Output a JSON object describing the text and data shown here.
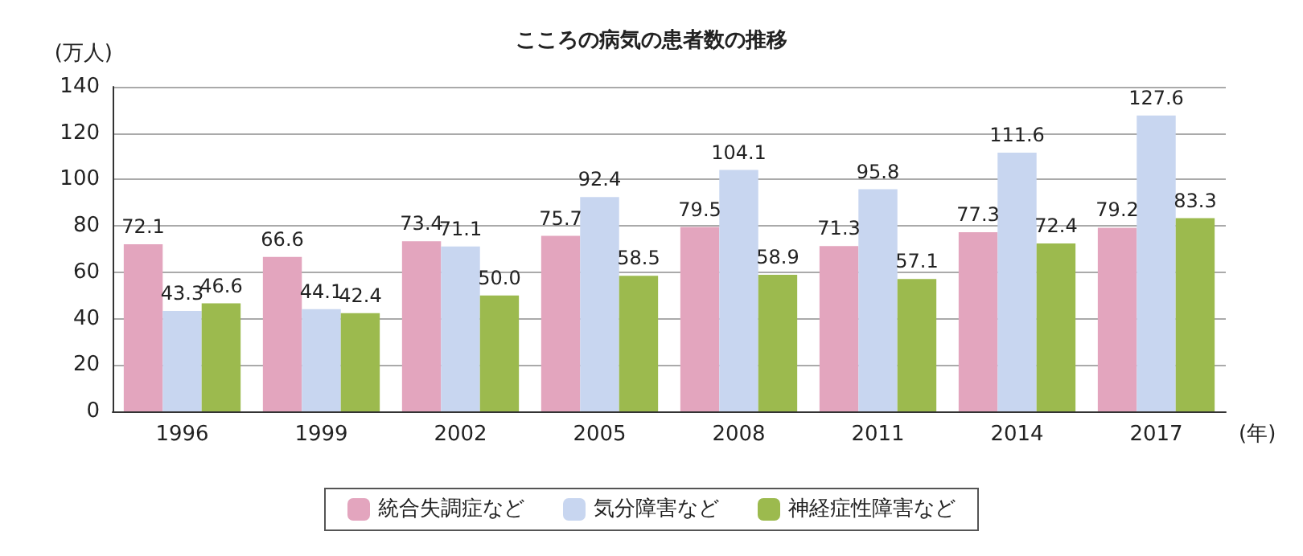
{
  "chart_data": {
    "type": "bar",
    "title": "こころの病気の患者数の推移",
    "ylabel": "(万人)",
    "xlabel": "(年)",
    "categories": [
      "1996",
      "1999",
      "2002",
      "2005",
      "2008",
      "2011",
      "2014",
      "2017"
    ],
    "series": [
      {
        "name": "統合失調症など",
        "color": "#e3a5be",
        "values": [
          72.1,
          66.6,
          73.4,
          75.7,
          79.5,
          71.3,
          77.3,
          79.2
        ],
        "value_labels": [
          "72.1",
          "66.6",
          "73.4",
          "75.7",
          "79.5",
          "71.3",
          "77.3",
          "79.2"
        ]
      },
      {
        "name": "気分障害など",
        "color": "#c8d6f0",
        "values": [
          43.3,
          44.1,
          71.1,
          92.4,
          104.1,
          95.8,
          111.6,
          127.6
        ],
        "value_labels": [
          "43.3",
          "44.1",
          "71.1",
          "92.4",
          "104.1",
          "95.8",
          "111.6",
          "127.6"
        ]
      },
      {
        "name": "神経症性障害など",
        "color": "#9cba4e",
        "values": [
          46.6,
          42.4,
          50.0,
          58.5,
          58.9,
          57.1,
          72.4,
          83.3
        ],
        "value_labels": [
          "46.6",
          "42.4",
          "50.0",
          "58.5",
          "58.9",
          "57.1",
          "72.4",
          "83.3"
        ]
      }
    ],
    "ylim": [
      0,
      140
    ],
    "yticks": [
      0,
      20,
      40,
      60,
      80,
      100,
      120,
      140
    ],
    "grid": "y",
    "legend": "bottom"
  }
}
